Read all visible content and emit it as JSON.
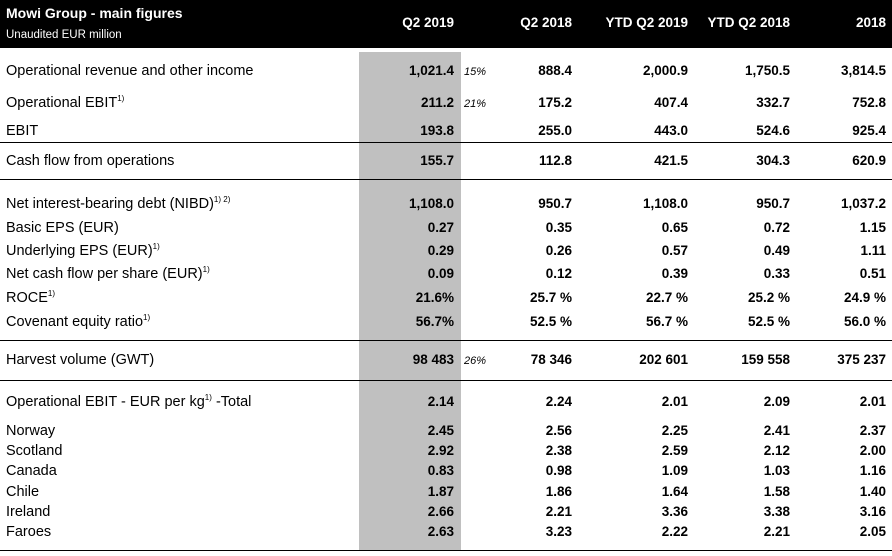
{
  "header": {
    "title": "Mowi Group - main figures",
    "subtitle": "Unaudited EUR million",
    "columns": [
      "Q2 2019",
      "Q2 2018",
      "YTD Q2 2019",
      "YTD Q2 2018",
      "2018"
    ]
  },
  "rows": [
    {
      "label": "Operational revenue and other income",
      "sup": "",
      "change": "15%",
      "values": [
        "1,021.4",
        "888.4",
        "2,000.9",
        "1,750.5",
        "3,814.5"
      ]
    },
    {
      "label": "Operational EBIT",
      "sup": "1)",
      "change": "21%",
      "values": [
        "211.2",
        "175.2",
        "407.4",
        "332.7",
        "752.8"
      ]
    },
    {
      "label": "EBIT",
      "sup": "",
      "change": "",
      "values": [
        "193.8",
        "255.0",
        "443.0",
        "524.6",
        "925.4"
      ]
    },
    {
      "label": "Cash flow from operations",
      "sup": "",
      "change": "",
      "values": [
        "155.7",
        "112.8",
        "421.5",
        "304.3",
        "620.9"
      ]
    },
    {
      "label": "Net interest-bearing debt (NIBD)",
      "sup": "1) 2)",
      "change": "",
      "values": [
        "1,108.0",
        "950.7",
        "1,108.0",
        "950.7",
        "1,037.2"
      ]
    },
    {
      "label": "Basic EPS (EUR)",
      "sup": "",
      "change": "",
      "values": [
        "0.27",
        "0.35",
        "0.65",
        "0.72",
        "1.15"
      ]
    },
    {
      "label": "Underlying EPS (EUR)",
      "sup": "1)",
      "change": "",
      "values": [
        "0.29",
        "0.26",
        "0.57",
        "0.49",
        "1.11"
      ]
    },
    {
      "label": "Net cash flow per share (EUR)",
      "sup": "1)",
      "change": "",
      "values": [
        "0.09",
        "0.12",
        "0.39",
        "0.33",
        "0.51"
      ]
    },
    {
      "label": "ROCE",
      "sup": "1)",
      "change": "",
      "values": [
        "21.6%",
        "25.7 %",
        "22.7 %",
        "25.2 %",
        "24.9 %"
      ]
    },
    {
      "label": "Covenant equity ratio",
      "sup": "1)",
      "change": "",
      "values": [
        "56.7%",
        "52.5 %",
        "56.7 %",
        "52.5 %",
        "56.0 %"
      ]
    },
    {
      "label": "Harvest volume (GWT)",
      "sup": "",
      "change": "26%",
      "values": [
        "98 483",
        "78 346",
        "202 601",
        "159 558",
        "375 237"
      ]
    },
    {
      "label": "Operational EBIT - EUR per kg",
      "sup": "1)",
      "suffix": " -Total",
      "change": "",
      "values": [
        "2.14",
        "2.24",
        "2.01",
        "2.09",
        "2.01"
      ]
    },
    {
      "label": "Norway",
      "sup": "",
      "change": "",
      "values": [
        "2.45",
        "2.56",
        "2.25",
        "2.41",
        "2.37"
      ]
    },
    {
      "label": "Scotland",
      "sup": "",
      "change": "",
      "values": [
        "2.92",
        "2.38",
        "2.59",
        "2.12",
        "2.00"
      ]
    },
    {
      "label": "Canada",
      "sup": "",
      "change": "",
      "values": [
        "0.83",
        "0.98",
        "1.09",
        "1.03",
        "1.16"
      ]
    },
    {
      "label": "Chile",
      "sup": "",
      "change": "",
      "values": [
        "1.87",
        "1.86",
        "1.64",
        "1.58",
        "1.40"
      ]
    },
    {
      "label": "Ireland",
      "sup": "",
      "change": "",
      "values": [
        "2.66",
        "2.21",
        "3.36",
        "3.38",
        "3.16"
      ]
    },
    {
      "label": "Faroes",
      "sup": "",
      "change": "",
      "values": [
        "2.63",
        "3.23",
        "2.22",
        "2.21",
        "2.05"
      ]
    }
  ]
}
